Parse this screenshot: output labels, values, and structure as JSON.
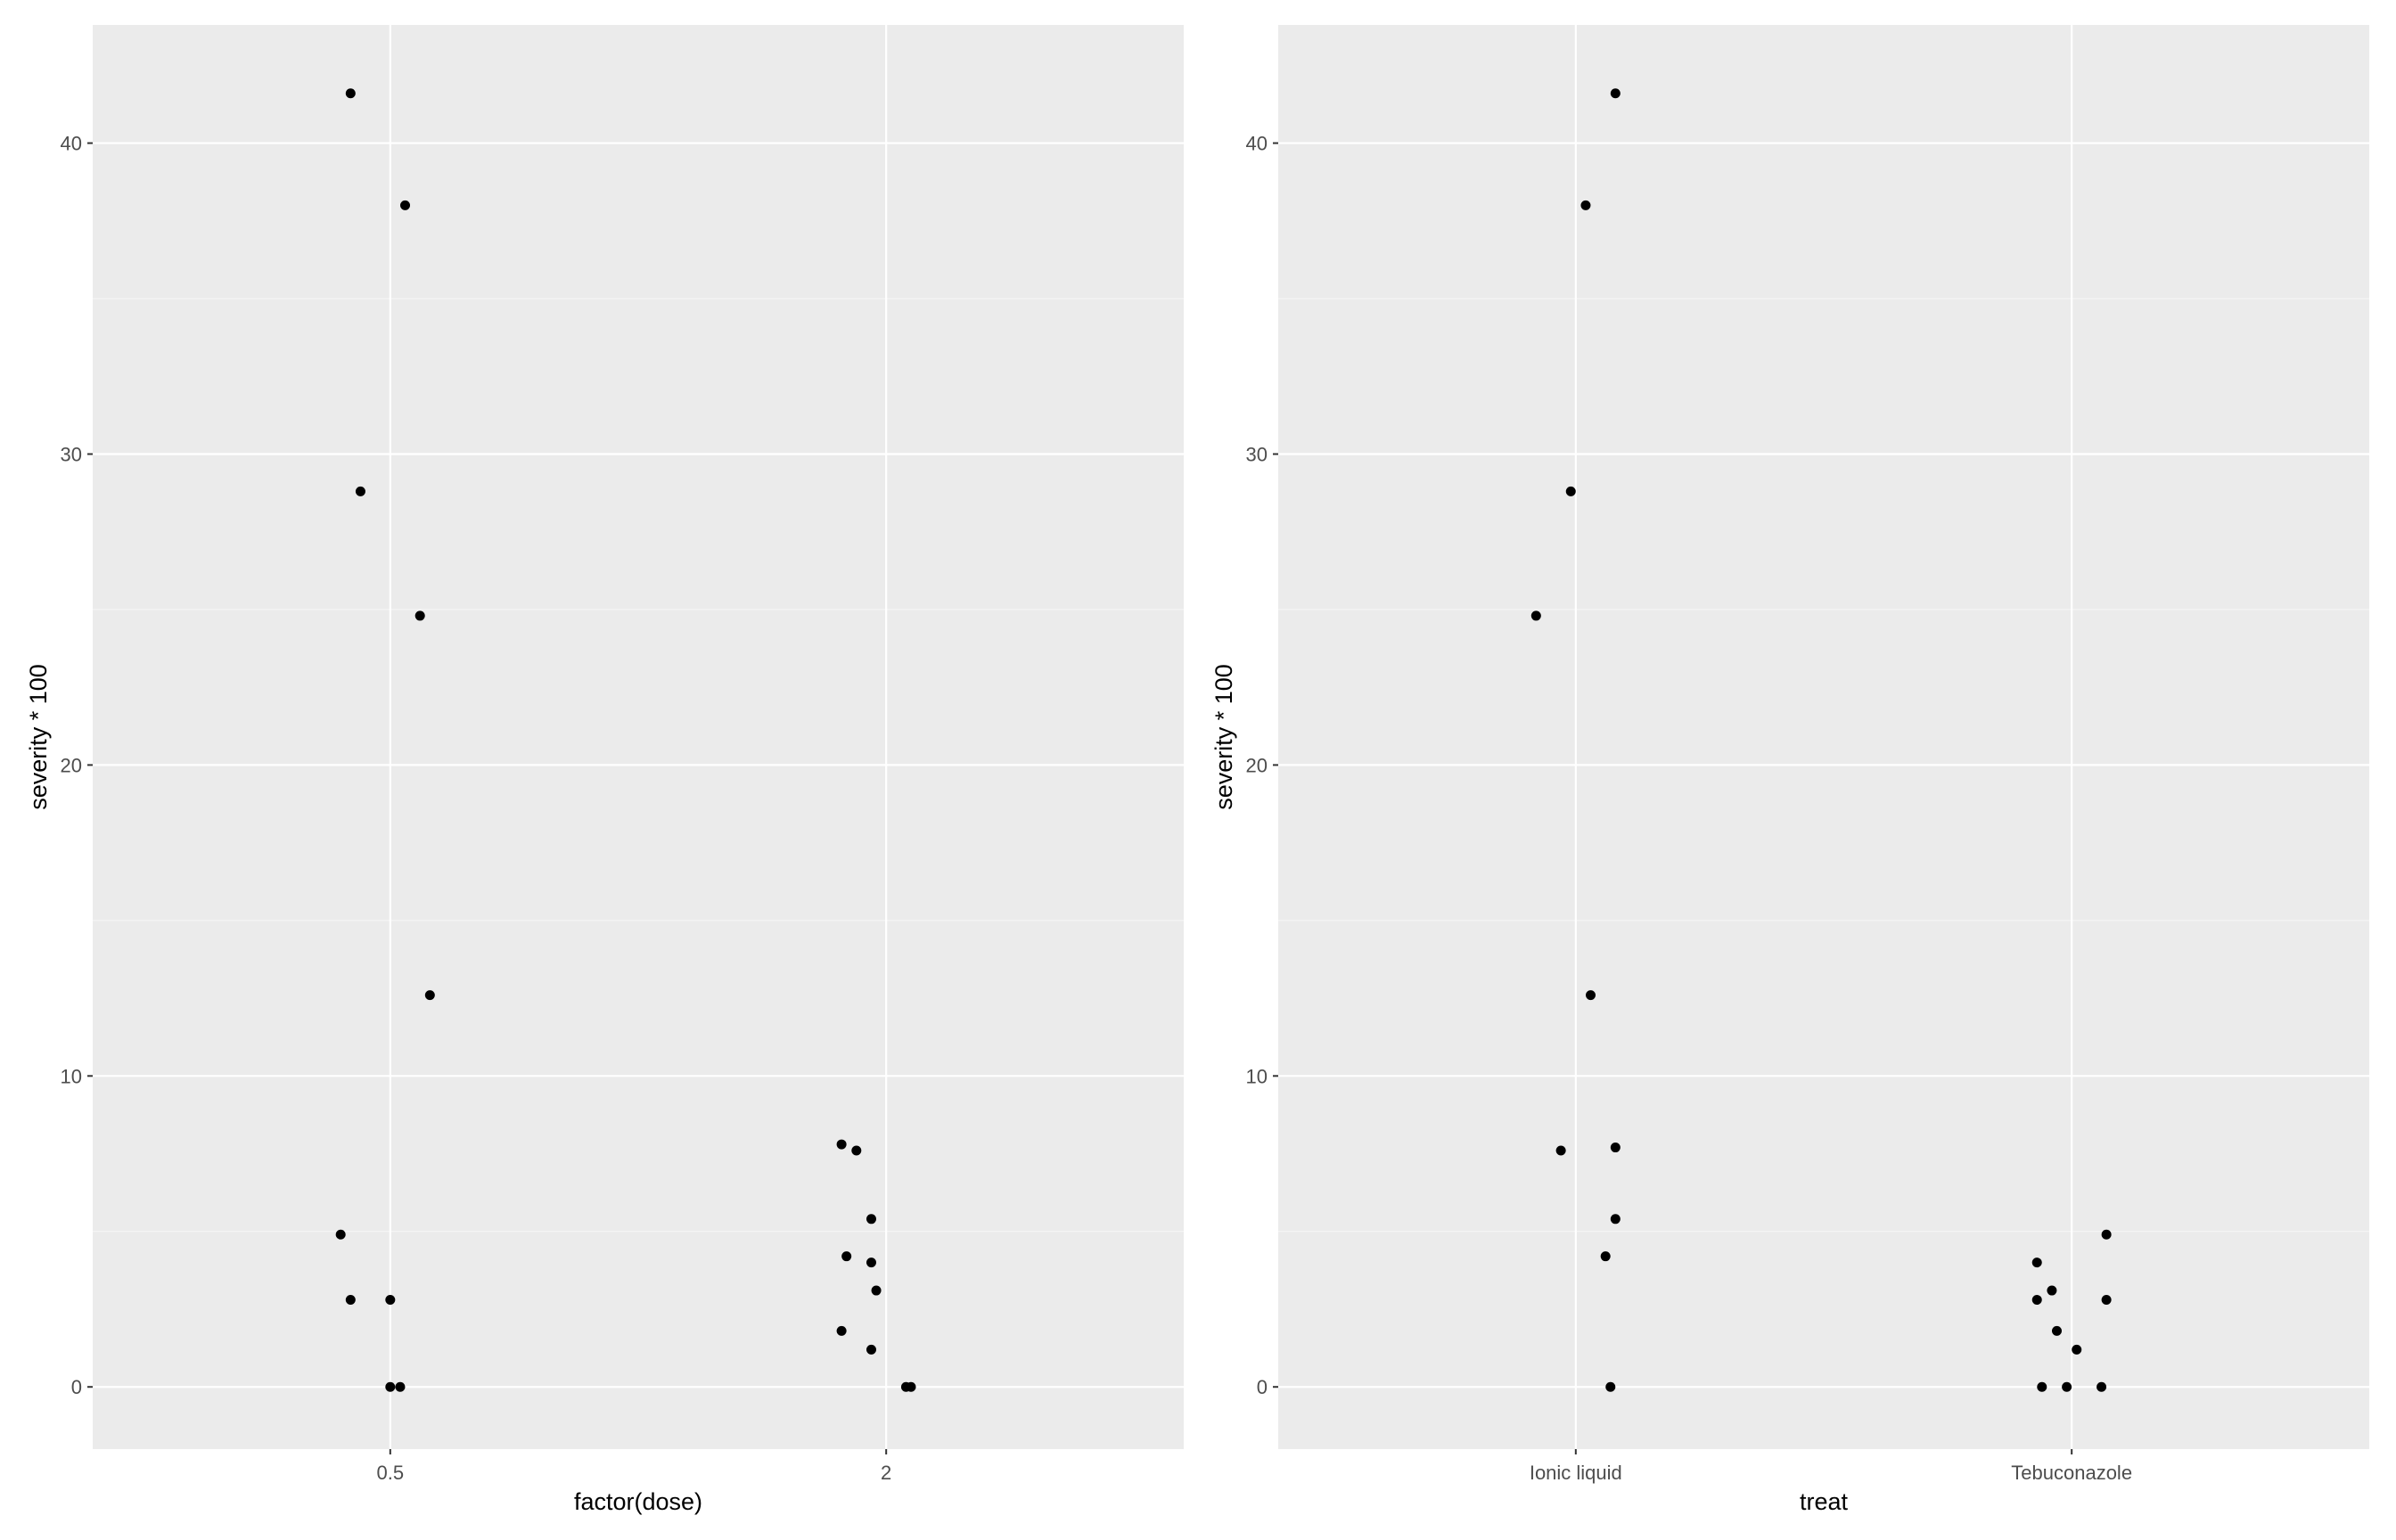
{
  "chart_data": [
    {
      "type": "scatter",
      "jitter": true,
      "xlabel": "factor(dose)",
      "ylabel": "severity * 100",
      "categories": [
        "0.5",
        "2"
      ],
      "ylim": [
        -2,
        43.8
      ],
      "yticks": [
        0,
        10,
        20,
        30,
        40
      ],
      "grid": true,
      "colors": {
        "panel": "#ebebeb",
        "grid_major": "#ffffff",
        "grid_minor": "#f5f5f5",
        "point": "#000000"
      },
      "points": [
        {
          "category": "0.5",
          "jitter": -0.08,
          "y": 41.6
        },
        {
          "category": "0.5",
          "jitter": 0.03,
          "y": 38.0
        },
        {
          "category": "0.5",
          "jitter": -0.06,
          "y": 28.8
        },
        {
          "category": "0.5",
          "jitter": 0.06,
          "y": 24.8
        },
        {
          "category": "0.5",
          "jitter": 0.08,
          "y": 12.6
        },
        {
          "category": "0.5",
          "jitter": -0.1,
          "y": 4.9
        },
        {
          "category": "0.5",
          "jitter": -0.08,
          "y": 2.8
        },
        {
          "category": "0.5",
          "jitter": 0.0,
          "y": 2.8
        },
        {
          "category": "0.5",
          "jitter": 0.0,
          "y": 0.0
        },
        {
          "category": "0.5",
          "jitter": 0.02,
          "y": 0.0
        },
        {
          "category": "2",
          "jitter": -0.09,
          "y": 7.8
        },
        {
          "category": "2",
          "jitter": -0.06,
          "y": 7.6
        },
        {
          "category": "2",
          "jitter": -0.03,
          "y": 5.4
        },
        {
          "category": "2",
          "jitter": -0.08,
          "y": 4.2
        },
        {
          "category": "2",
          "jitter": -0.03,
          "y": 4.0
        },
        {
          "category": "2",
          "jitter": -0.02,
          "y": 3.1
        },
        {
          "category": "2",
          "jitter": -0.09,
          "y": 1.8
        },
        {
          "category": "2",
          "jitter": -0.03,
          "y": 1.2
        },
        {
          "category": "2",
          "jitter": 0.04,
          "y": 0.0
        },
        {
          "category": "2",
          "jitter": 0.05,
          "y": 0.0
        }
      ]
    },
    {
      "type": "scatter",
      "jitter": true,
      "xlabel": "treat",
      "ylabel": "severity * 100",
      "categories": [
        "Ionic liquid",
        "Tebuconazole"
      ],
      "ylim": [
        -2,
        43.8
      ],
      "yticks": [
        0,
        10,
        20,
        30,
        40
      ],
      "grid": true,
      "colors": {
        "panel": "#ebebeb",
        "grid_major": "#ffffff",
        "grid_minor": "#f5f5f5",
        "point": "#000000"
      },
      "points": [
        {
          "category": "Ionic liquid",
          "jitter": 0.08,
          "y": 41.6
        },
        {
          "category": "Ionic liquid",
          "jitter": 0.02,
          "y": 38.0
        },
        {
          "category": "Ionic liquid",
          "jitter": -0.01,
          "y": 28.8
        },
        {
          "category": "Ionic liquid",
          "jitter": -0.08,
          "y": 24.8
        },
        {
          "category": "Ionic liquid",
          "jitter": 0.03,
          "y": 12.6
        },
        {
          "category": "Ionic liquid",
          "jitter": 0.08,
          "y": 7.7
        },
        {
          "category": "Ionic liquid",
          "jitter": -0.03,
          "y": 7.6
        },
        {
          "category": "Ionic liquid",
          "jitter": 0.08,
          "y": 5.4
        },
        {
          "category": "Ionic liquid",
          "jitter": 0.06,
          "y": 4.2
        },
        {
          "category": "Ionic liquid",
          "jitter": 0.07,
          "y": 0.0
        },
        {
          "category": "Tebuconazole",
          "jitter": 0.07,
          "y": 4.9
        },
        {
          "category": "Tebuconazole",
          "jitter": -0.07,
          "y": 4.0
        },
        {
          "category": "Tebuconazole",
          "jitter": -0.04,
          "y": 3.1
        },
        {
          "category": "Tebuconazole",
          "jitter": -0.07,
          "y": 2.8
        },
        {
          "category": "Tebuconazole",
          "jitter": 0.07,
          "y": 2.8
        },
        {
          "category": "Tebuconazole",
          "jitter": -0.03,
          "y": 1.8
        },
        {
          "category": "Tebuconazole",
          "jitter": 0.01,
          "y": 1.2
        },
        {
          "category": "Tebuconazole",
          "jitter": -0.06,
          "y": 0.0
        },
        {
          "category": "Tebuconazole",
          "jitter": -0.01,
          "y": 0.0
        },
        {
          "category": "Tebuconazole",
          "jitter": 0.06,
          "y": 0.0
        }
      ]
    }
  ]
}
